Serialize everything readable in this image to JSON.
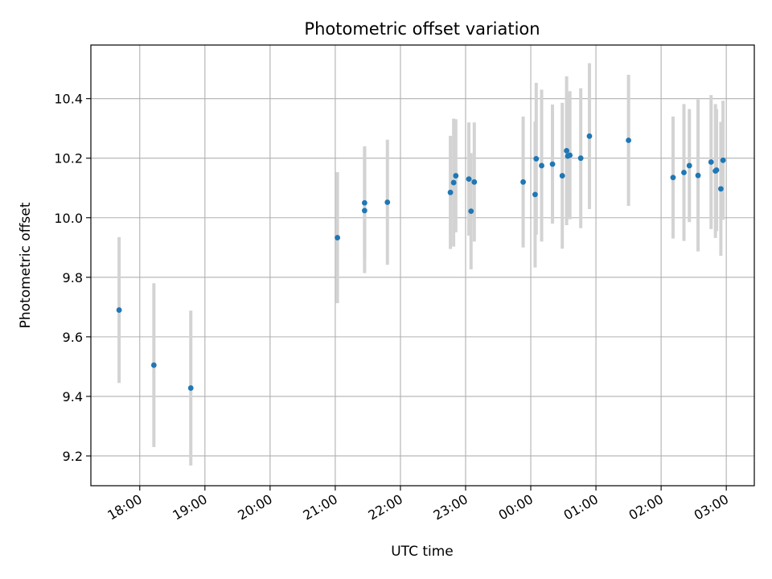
{
  "chart_data": {
    "type": "scatter",
    "title": "Photometric offset variation",
    "xlabel": "UTC time",
    "ylabel": "Photometric offset",
    "xlim_hours": [
      17.25,
      27.43
    ],
    "ylim": [
      9.1,
      10.58
    ],
    "x_tick_values": [
      18,
      19,
      20,
      21,
      22,
      23,
      24,
      25,
      26,
      27
    ],
    "x_tick_labels": [
      "18:00",
      "19:00",
      "20:00",
      "21:00",
      "22:00",
      "23:00",
      "00:00",
      "01:00",
      "02:00",
      "03:00"
    ],
    "y_ticks": [
      9.2,
      9.4,
      9.6,
      9.8,
      10.0,
      10.2,
      10.4
    ],
    "y_tick_labels": [
      "9.2",
      "9.4",
      "9.6",
      "9.8",
      "10.0",
      "10.2",
      "10.4"
    ],
    "grid": true,
    "colors": {
      "point": "#1f77b4",
      "errorbar": "#d3d3d3",
      "grid": "#b0b0b0"
    },
    "series": [
      {
        "x": [
          "17:41",
          "18:13",
          "18:47",
          "21:02",
          "21:27",
          "21:27",
          "21:48",
          "22:46",
          "22:49",
          "22:51",
          "23:03",
          "23:05",
          "23:08",
          "23:53",
          "00:04",
          "00:05",
          "00:10",
          "00:20",
          "00:29",
          "00:33",
          "00:34",
          "00:36",
          "00:46",
          "00:54",
          "01:30",
          "02:11",
          "02:21",
          "02:26",
          "02:34",
          "02:46",
          "02:50",
          "02:51",
          "02:55",
          "02:57"
        ],
        "y": [
          9.69,
          9.505,
          9.428,
          9.933,
          10.024,
          10.05,
          10.052,
          10.085,
          10.118,
          10.141,
          10.13,
          10.022,
          10.12,
          10.12,
          10.078,
          10.198,
          10.175,
          10.18,
          10.141,
          10.225,
          10.207,
          10.21,
          10.2,
          10.274,
          10.26,
          10.135,
          10.152,
          10.175,
          10.142,
          10.187,
          10.157,
          10.16,
          10.097,
          10.193
        ],
        "yerr": [
          0.245,
          0.275,
          0.26,
          0.22,
          0.21,
          0.19,
          0.21,
          0.19,
          0.215,
          0.19,
          0.19,
          0.195,
          0.2,
          0.22,
          0.245,
          0.255,
          0.255,
          0.2,
          0.245,
          0.25,
          0.21,
          0.215,
          0.235,
          0.245,
          0.22,
          0.205,
          0.23,
          0.19,
          0.255,
          0.225,
          0.225,
          0.205,
          0.225,
          0.2
        ]
      }
    ]
  }
}
